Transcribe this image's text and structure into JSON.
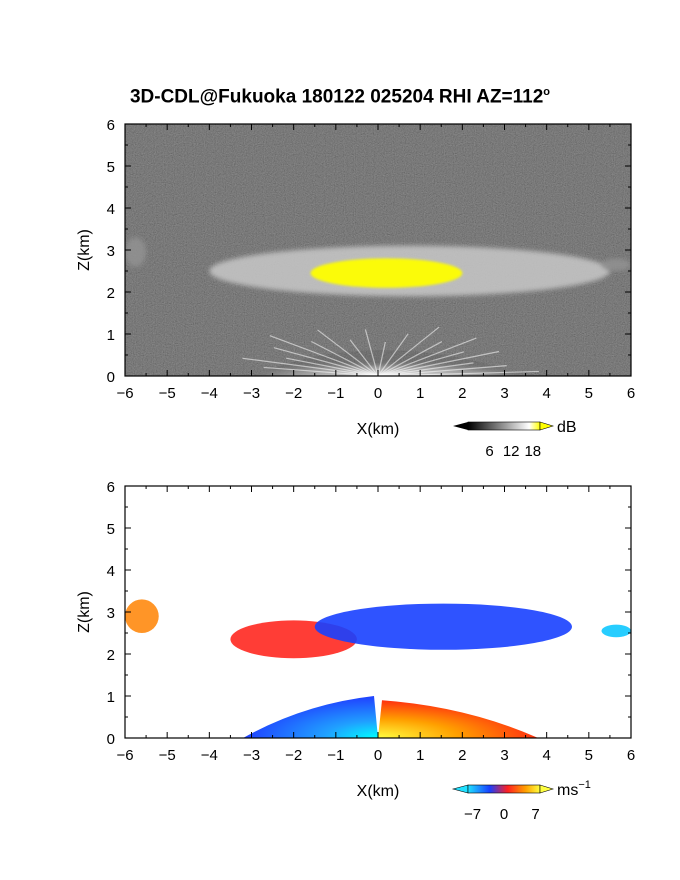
{
  "title": "3D-CDL@Fukuoka 180122 025204 RHI AZ=112",
  "title_deg": "o",
  "chart_data": [
    {
      "type": "heatmap",
      "name": "reflectivity",
      "xlabel": "X(km)",
      "ylabel": "Z(km)",
      "xlim": [
        -6,
        6
      ],
      "ylim": [
        0,
        6
      ],
      "xticks": [
        -6,
        -5,
        -4,
        -3,
        -2,
        -1,
        0,
        1,
        2,
        3,
        4,
        5,
        6
      ],
      "yticks": [
        0,
        1,
        2,
        3,
        4,
        5,
        6
      ],
      "background": "#222222",
      "colorbar": {
        "unit": "dB",
        "ticks": [
          6,
          12,
          18
        ],
        "range": [
          0,
          20
        ],
        "colors": [
          "#000000",
          "#ffffff",
          "#ffff00"
        ]
      },
      "layers": [
        {
          "x_range": [
            -4.0,
            5.5
          ],
          "z_range": [
            1.9,
            3.1
          ],
          "level_db": 11
        },
        {
          "x_range": [
            -1.6,
            2.0
          ],
          "z_range": [
            2.1,
            2.8
          ],
          "level_db": 18
        },
        {
          "x_range": [
            -6.0,
            -5.5
          ],
          "z_range": [
            2.6,
            3.3
          ],
          "level_db": 8
        },
        {
          "x_range": [
            5.3,
            6.0
          ],
          "z_range": [
            2.5,
            2.8
          ],
          "level_db": 8
        }
      ],
      "near_field": {
        "x_range": [
          -3.0,
          3.5
        ],
        "z_max": 1.0,
        "level_db": 12
      }
    },
    {
      "type": "heatmap",
      "name": "doppler-velocity",
      "xlabel": "X(km)",
      "ylabel": "Z(km)",
      "xlim": [
        -6,
        6
      ],
      "ylim": [
        0,
        6
      ],
      "xticks": [
        -6,
        -5,
        -4,
        -3,
        -2,
        -1,
        0,
        1,
        2,
        3,
        4,
        5,
        6
      ],
      "yticks": [
        0,
        1,
        2,
        3,
        4,
        5,
        6
      ],
      "background": "#ffffff",
      "colorbar": {
        "unit": "ms",
        "unit_exp": "−1",
        "ticks": [
          "−7",
          "0",
          "7"
        ],
        "range": [
          -8,
          8
        ],
        "colors": [
          "#20d0ff",
          "#1840ff",
          "#ff2020",
          "#ffa000",
          "#ffff40"
        ]
      },
      "layers": [
        {
          "x_range": [
            -3.5,
            -0.5
          ],
          "z_range": [
            1.9,
            2.8
          ],
          "velocity": 4
        },
        {
          "x_range": [
            -1.5,
            4.6
          ],
          "z_range": [
            2.1,
            3.2
          ],
          "velocity": -4
        },
        {
          "x_range": [
            -6.0,
            -5.2
          ],
          "z_range": [
            2.5,
            3.3
          ],
          "velocity": 5
        },
        {
          "x_range": [
            5.3,
            6.0
          ],
          "z_range": [
            2.4,
            2.7
          ],
          "velocity": -6
        }
      ],
      "near_field": [
        {
          "x_range": [
            -3.2,
            0.0
          ],
          "z_max": 1.0,
          "velocity": -5
        },
        {
          "x_range": [
            0.0,
            3.8
          ],
          "z_max": 0.9,
          "velocity": 5
        }
      ]
    }
  ]
}
